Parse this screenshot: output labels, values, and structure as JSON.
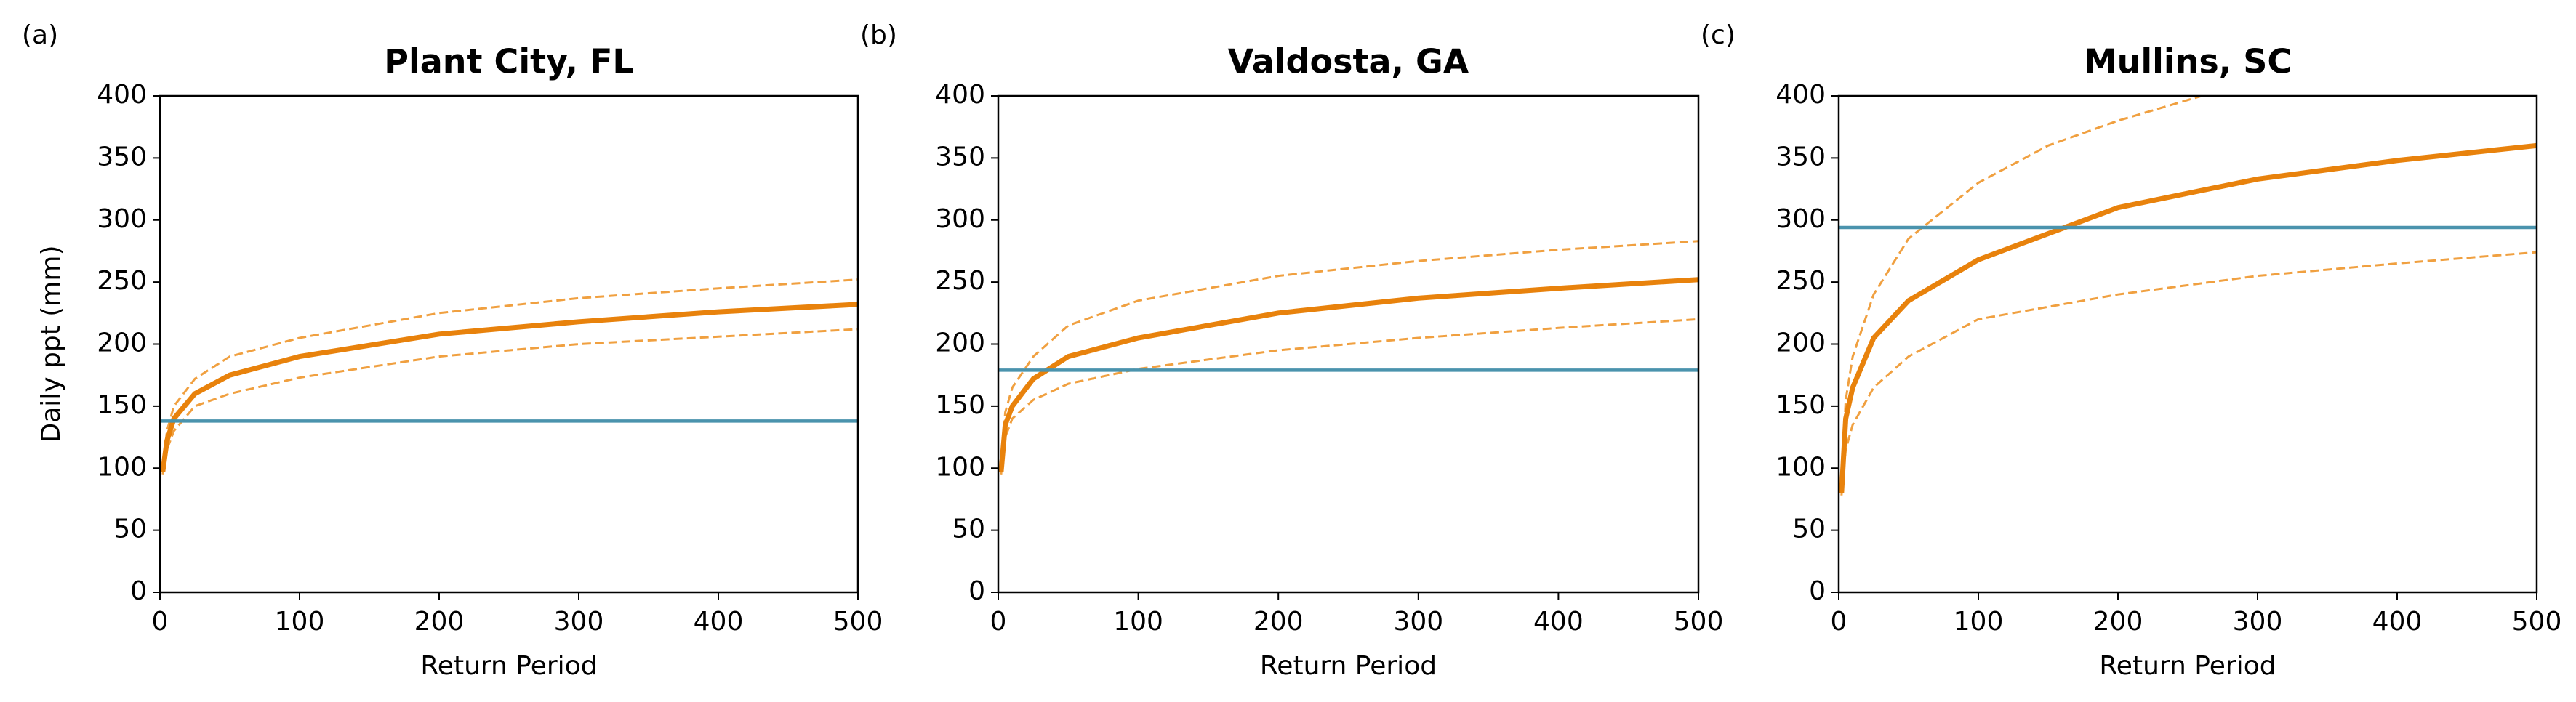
{
  "chart_data": [
    {
      "type": "line",
      "label": "(a)",
      "title": "Plant City, FL",
      "x_label": "Return Period",
      "y_label": "Daily ppt (mm)",
      "xlim": [
        0,
        500
      ],
      "xticks": [
        0,
        100,
        200,
        300,
        400,
        500
      ],
      "ylim": [
        0,
        400
      ],
      "yticks": [
        0,
        50,
        100,
        150,
        200,
        250,
        300,
        350,
        400
      ],
      "series": [
        {
          "color": "#e8820c",
          "linestyle": "solid",
          "x": [
            2,
            5,
            10,
            25,
            50,
            100,
            200,
            300,
            400,
            500
          ],
          "values": [
            97,
            122,
            140,
            160,
            175,
            190,
            208,
            218,
            226,
            232
          ]
        },
        {
          "color": "#f0a040",
          "linestyle": "dashed",
          "x": [
            2,
            5,
            10,
            25,
            50,
            100,
            200,
            300,
            400,
            500
          ],
          "values": [
            100,
            130,
            150,
            172,
            190,
            205,
            225,
            237,
            245,
            252
          ]
        },
        {
          "color": "#f0a040",
          "linestyle": "dashed",
          "x": [
            2,
            5,
            10,
            25,
            50,
            100,
            200,
            300,
            400,
            500
          ],
          "values": [
            95,
            115,
            130,
            150,
            160,
            173,
            190,
            200,
            206,
            212
          ]
        },
        {
          "color": "#4a93ad",
          "linestyle": "solid",
          "x": [
            0,
            500
          ],
          "values": [
            138,
            138
          ]
        }
      ]
    },
    {
      "type": "line",
      "label": "(b)",
      "title": "Valdosta, GA",
      "x_label": "Return Period",
      "xlim": [
        0,
        500
      ],
      "xticks": [
        0,
        100,
        200,
        300,
        400,
        500
      ],
      "ylim": [
        0,
        400
      ],
      "yticks": [
        0,
        50,
        100,
        150,
        200,
        250,
        300,
        350,
        400
      ],
      "series": [
        {
          "color": "#e8820c",
          "linestyle": "solid",
          "x": [
            2,
            5,
            10,
            25,
            50,
            100,
            200,
            300,
            400,
            500
          ],
          "values": [
            97,
            135,
            150,
            172,
            190,
            205,
            225,
            237,
            245,
            252
          ]
        },
        {
          "color": "#f0a040",
          "linestyle": "dashed",
          "x": [
            2,
            5,
            10,
            25,
            50,
            100,
            200,
            300,
            400,
            500
          ],
          "values": [
            100,
            145,
            165,
            190,
            215,
            235,
            255,
            267,
            276,
            283
          ]
        },
        {
          "color": "#f0a040",
          "linestyle": "dashed",
          "x": [
            2,
            5,
            10,
            25,
            50,
            100,
            200,
            300,
            400,
            500
          ],
          "values": [
            95,
            125,
            140,
            155,
            168,
            180,
            195,
            205,
            213,
            220
          ]
        },
        {
          "color": "#4a93ad",
          "linestyle": "solid",
          "x": [
            0,
            500
          ],
          "values": [
            179,
            179
          ]
        }
      ]
    },
    {
      "type": "line",
      "label": "(c)",
      "title": "Mullins, SC",
      "x_label": "Return Period",
      "xlim": [
        0,
        500
      ],
      "xticks": [
        0,
        100,
        200,
        300,
        400,
        500
      ],
      "ylim": [
        0,
        400
      ],
      "yticks": [
        0,
        50,
        100,
        150,
        200,
        250,
        300,
        350,
        400
      ],
      "series": [
        {
          "color": "#e8820c",
          "linestyle": "solid",
          "x": [
            2,
            5,
            10,
            25,
            50,
            100,
            200,
            300,
            400,
            500
          ],
          "values": [
            80,
            140,
            165,
            205,
            235,
            268,
            310,
            333,
            348,
            360
          ]
        },
        {
          "color": "#f0a040",
          "linestyle": "dashed",
          "x": [
            2,
            5,
            10,
            25,
            50,
            100,
            150,
            200,
            260
          ],
          "values": [
            82,
            155,
            190,
            240,
            285,
            330,
            360,
            380,
            400
          ]
        },
        {
          "color": "#f0a040",
          "linestyle": "dashed",
          "x": [
            2,
            5,
            10,
            25,
            50,
            100,
            200,
            300,
            400,
            500
          ],
          "values": [
            78,
            115,
            135,
            165,
            190,
            220,
            240,
            255,
            265,
            274
          ]
        },
        {
          "color": "#4a93ad",
          "linestyle": "solid",
          "x": [
            0,
            500
          ],
          "values": [
            294,
            294
          ]
        }
      ]
    }
  ]
}
